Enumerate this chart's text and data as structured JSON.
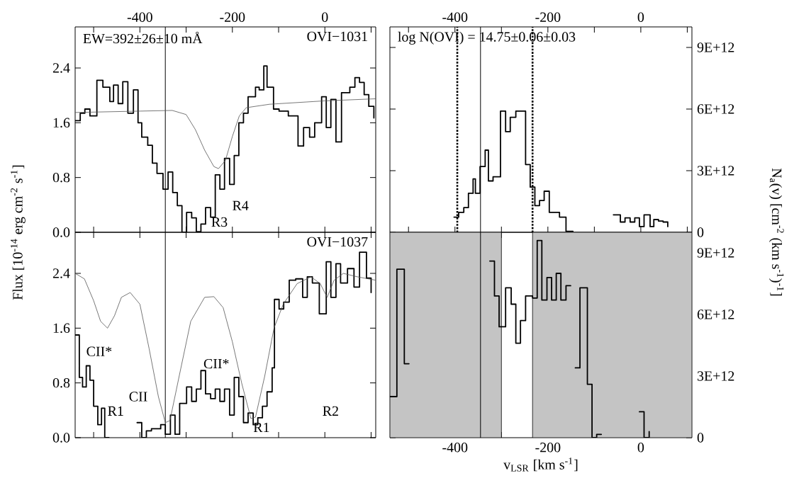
{
  "chart_data": [
    {
      "type": "step",
      "ylabel": "Flux [10$^{-14}$ erg cm$^{-2}$ s$^{-1}$]",
      "xlim": [
        -540,
        110
      ],
      "ylim": [
        0,
        3
      ],
      "xticks": [
        {
          "value": -500,
          "label": null
        },
        -400,
        {
          "value": -300,
          "label": null
        },
        -200,
        {
          "value": -100,
          "label": null
        },
        0,
        {
          "value": 100,
          "label": null
        }
      ],
      "yticks": [
        {
          "value": 0,
          "label": "0.0"
        },
        {
          "value": 0.8,
          "label": "0.8"
        },
        {
          "value": 1.6,
          "label": "1.6"
        },
        {
          "value": 2.4,
          "label": "2.4"
        }
      ],
      "series": [
        {
          "color": "#000000",
          "x": [
            -540,
            -529,
            -519,
            -508,
            -493,
            -480,
            -465,
            -457,
            -447,
            -437,
            -426,
            -414,
            -404,
            -396,
            -383,
            -373,
            -363,
            -350,
            -339,
            -329,
            -319,
            -309,
            -299,
            -288,
            -278,
            -268,
            -258,
            -247,
            -237,
            -227,
            -217,
            -206,
            -196,
            -186,
            -176,
            -166,
            -150,
            -142,
            -132,
            -125,
            -111,
            -99,
            -79,
            -58,
            -46,
            -33,
            -22,
            -7,
            3,
            13,
            24,
            36,
            54,
            65,
            75,
            85,
            95,
            106
          ],
          "values": [
            1.63,
            1.74,
            1.8,
            1.7,
            2.22,
            2.12,
            1.91,
            2.15,
            1.88,
            2.2,
            1.74,
            2.08,
            1.6,
            1.39,
            1.27,
            1.01,
            0.86,
            0.63,
            0.88,
            0.58,
            0.39,
            0.0,
            0.29,
            0.21,
            0.01,
            0.12,
            0.36,
            0.22,
            0.84,
            0.63,
            1.08,
            0.7,
            1.12,
            1.6,
            1.74,
            1.98,
            2.12,
            2.08,
            2.43,
            2.12,
            1.8,
            1.77,
            1.7,
            1.26,
            1.53,
            1.39,
            1.6,
            1.98,
            1.53,
            1.94,
            1.32,
            2.04,
            2.12,
            2.26,
            2.19,
            2.01,
            1.84,
            1.67
          ]
        },
        {
          "type": "line",
          "color": "#555555",
          "x": [
            -540,
            -400,
            -330,
            -300,
            -280,
            -260,
            -240,
            -230,
            -215,
            -200,
            -185,
            -170,
            -120,
            0,
            110
          ],
          "values": [
            1.75,
            1.77,
            1.78,
            1.72,
            1.5,
            1.2,
            0.96,
            0.93,
            1.05,
            1.4,
            1.7,
            1.82,
            1.87,
            1.92,
            1.95
          ]
        }
      ],
      "annotations": [
        "EW=392±26±10 mÅ",
        "OVI−1031",
        "R3",
        "R4"
      ],
      "ref_lines": [
        {
          "axis": "x",
          "value": -345,
          "line_style": "solid"
        }
      ]
    },
    {
      "type": "step",
      "ylabel": "N$_{a}$(v) [cm$^{-2}$ (km s$^{-1}$)$^{-1}$]",
      "xlim": [
        -540,
        110
      ],
      "ylim": [
        0,
        10000000000000.0
      ],
      "xticks": [
        {
          "value": -500,
          "label": null
        },
        -400,
        {
          "value": -300,
          "label": null
        },
        -200,
        {
          "value": -100,
          "label": null
        },
        0,
        {
          "value": 100,
          "label": null
        }
      ],
      "yticks": [
        {
          "value": 0,
          "label": "0"
        },
        {
          "value": 3000000000000.0,
          "label": "3E+12"
        },
        {
          "value": 6000000000000.0,
          "label": "6E+12"
        },
        {
          "value": 9000000000000.0,
          "label": "9E+12"
        }
      ],
      "series": [
        {
          "color": "#000000",
          "x": [
            -402,
            -392,
            -381,
            -371,
            -361,
            -356,
            -346,
            -335,
            -328,
            -318,
            -302,
            -291,
            -281,
            -269,
            -248,
            -238,
            -228,
            -218,
            -208,
            -197,
            -175,
            -161,
            -146,
            -59,
            -44,
            -34,
            -23,
            -13,
            -3,
            7,
            20,
            28,
            38,
            48,
            58
          ],
          "values": [
            740000000000.0,
            970000000000.0,
            1200000000000.0,
            1900000000000.0,
            2600000000000.0,
            1900000000000.0,
            3200000000000.0,
            4000000000000.0,
            2500000000000.0,
            2700000000000.0,
            5900000000000.0,
            4900000000000.0,
            5600000000000.0,
            5900000000000.0,
            3300000000000.0,
            2200000000000.0,
            1300000000000.0,
            1550000000000.0,
            2000000000000.0,
            970000000000.0,
            740000000000.0,
            50000000000.0,
            null,
            850000000000.0,
            500000000000.0,
            700000000000.0,
            500000000000.0,
            700000000000.0,
            280000000000.0,
            850000000000.0,
            280000000000.0,
            620000000000.0,
            550000000000.0,
            500000000000.0,
            280000000000.0
          ]
        }
      ],
      "annotations": [
        "log N(OVI) = 14.75±0.06±0.03"
      ],
      "ref_lines": [
        {
          "axis": "x",
          "value": -395,
          "line_style": "dotted"
        },
        {
          "axis": "x",
          "value": -233,
          "line_style": "dotted"
        },
        {
          "axis": "x",
          "value": -345,
          "line_style": "solid"
        }
      ]
    },
    {
      "type": "step",
      "xlim": [
        -540,
        110
      ],
      "ylim": [
        0,
        3
      ],
      "tick_labels": "y",
      "xticks": [
        {
          "value": -500,
          "label": null
        },
        -400,
        {
          "value": -300,
          "label": null
        },
        -200,
        {
          "value": -100,
          "label": null
        },
        0,
        {
          "value": 100,
          "label": null
        }
      ],
      "yticks": [
        {
          "value": 0,
          "label": "0.0"
        },
        {
          "value": 0.8,
          "label": "0.8"
        },
        {
          "value": 1.6,
          "label": "1.6"
        },
        {
          "value": 2.4,
          "label": "2.4"
        }
      ],
      "series": [
        {
          "color": "#000000",
          "x": [
            -540,
            -531,
            -524,
            -516,
            -508,
            -500,
            -491,
            -483,
            -476,
            -467,
            -406,
            -396,
            -386,
            -375,
            -355,
            -345,
            -334,
            -324,
            -314,
            -299,
            -288,
            -278,
            -268,
            -258,
            -247,
            -237,
            -227,
            -217,
            -206,
            -196,
            -186,
            -176,
            -166,
            -155,
            -145,
            -135,
            -125,
            -114,
            -109,
            -99,
            -89,
            -77,
            -63,
            -48,
            -38,
            -27,
            -12,
            3,
            13,
            24,
            34,
            49,
            63,
            75,
            90,
            100
          ],
          "values": [
            1.5,
            0.88,
            0.74,
            1.05,
            0.84,
            0.46,
            0.19,
            0.43,
            0.0,
            null,
            0.22,
            0.0,
            0.1,
            0.13,
            0.19,
            0.05,
            0.33,
            0.05,
            0.5,
            0.74,
            0.53,
            0.71,
            0.98,
            0.64,
            0.57,
            0.71,
            0.53,
            0.71,
            0.33,
            0.88,
            0.6,
            0.22,
            0.36,
            0.19,
            0.29,
            0.46,
            0.67,
            1.02,
            2.02,
            1.88,
            1.98,
            2.3,
            2.32,
            2.05,
            2.35,
            2.26,
            1.81,
            2.57,
            2.05,
            2.54,
            2.26,
            2.47,
            2.2,
            2.71,
            2.33,
            2.12
          ]
        },
        {
          "type": "line",
          "color": "#555555",
          "x": [
            -540,
            -520,
            -500,
            -485,
            -470,
            -455,
            -440,
            -421,
            -400,
            -380,
            -360,
            -345,
            -335,
            -315,
            -290,
            -260,
            -240,
            -220,
            -200,
            -180,
            -160,
            -150,
            -130,
            -110,
            -90,
            -60,
            -30,
            -10,
            5,
            20,
            40,
            70,
            110
          ],
          "values": [
            2.4,
            2.32,
            2.0,
            1.7,
            1.6,
            1.78,
            2.05,
            2.12,
            1.95,
            1.3,
            0.6,
            0.22,
            0.25,
            0.9,
            1.7,
            2.05,
            2.06,
            1.9,
            1.4,
            0.8,
            0.28,
            0.3,
            0.9,
            1.6,
            1.95,
            2.25,
            2.35,
            2.25,
            2.05,
            2.3,
            2.4,
            2.35,
            2.3
          ]
        }
      ],
      "annotations": [
        "OVI−1037",
        "CII*",
        "R1",
        "CII",
        "CII*",
        "R1",
        "R2"
      ],
      "ref_lines": [
        {
          "axis": "x",
          "value": -345,
          "line_style": "solid"
        }
      ]
    },
    {
      "type": "step",
      "xlabel": "v$_{LSR}$ [km s$^{-1}$]",
      "xlim": [
        -540,
        110
      ],
      "ylim": [
        0,
        10000000000000.0
      ],
      "xticks": [
        {
          "value": -500,
          "label": null
        },
        -400,
        {
          "value": -300,
          "label": null
        },
        -200,
        {
          "value": -100,
          "label": null
        },
        0,
        {
          "value": 100,
          "label": null
        }
      ],
      "yticks": [
        {
          "value": 0,
          "label": "0"
        },
        {
          "value": 3000000000000.0,
          "label": "3E+12"
        },
        {
          "value": 6000000000000.0,
          "label": "6E+12"
        },
        {
          "value": 9000000000000.0,
          "label": "9E+12"
        }
      ],
      "series": [
        {
          "color": "#000000",
          "x": [
            -540,
            -525,
            -509,
            -499,
            -325,
            -315,
            -305,
            -291,
            -279,
            -269,
            -259,
            -248,
            -233,
            -223,
            -213,
            -202,
            -192,
            -182,
            -172,
            -161,
            -151,
            -141,
            -131,
            -115,
            -105,
            -95,
            -85,
            -3,
            7,
            18
          ],
          "values": [
            2000000000000.0,
            8200000000000.0,
            3600000000000.0,
            null,
            8600000000000.0,
            6900000000000.0,
            5400000000000.0,
            7300000000000.0,
            6500000000000.0,
            4600000000000.0,
            5700000000000.0,
            6900000000000.0,
            6800000000000.0,
            9600000000000.0,
            6700000000000.0,
            7800000000000.0,
            6700000000000.0,
            8000000000000.0,
            6700000000000.0,
            7400000000000.0,
            null,
            3400000000000.0,
            7300000000000.0,
            2600000000000.0,
            0,
            160000000000.0,
            null,
            1260000000000.0,
            0,
            300000000000.0
          ]
        }
      ],
      "bands": [
        {
          "axis": "x",
          "from": -540,
          "to": -300,
          "color": "#c4c4c4"
        },
        {
          "axis": "x",
          "from": -233,
          "to": 110,
          "color": "#c4c4c4"
        }
      ],
      "ref_lines": [
        {
          "axis": "x",
          "value": -345,
          "line_style": "solid"
        }
      ]
    }
  ]
}
